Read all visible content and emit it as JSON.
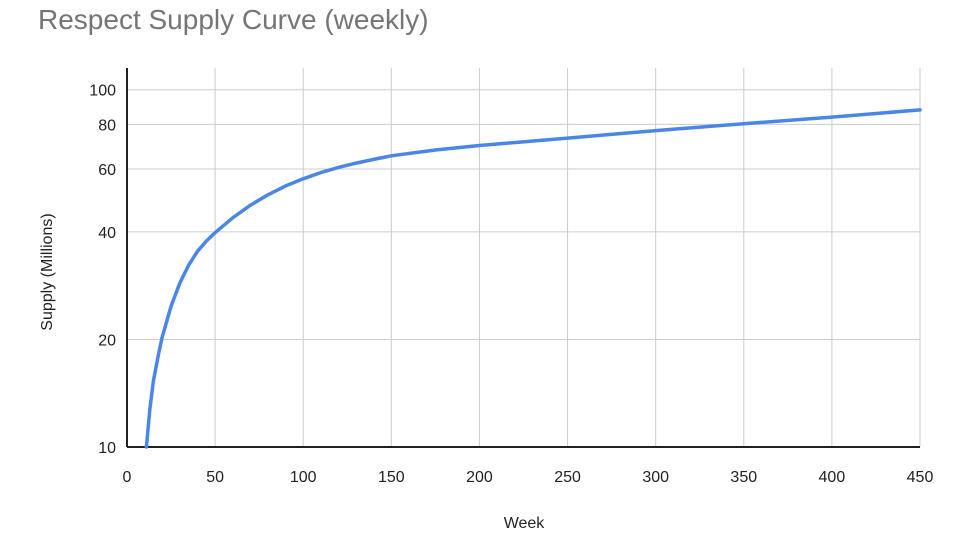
{
  "chart_data": {
    "type": "line",
    "title": "Respect Supply Curve (weekly)",
    "xlabel": "Week",
    "ylabel": "Supply (Millions)",
    "xlim": [
      0,
      450
    ],
    "ylim": [
      10,
      115
    ],
    "y_scale": "log",
    "x_ticks": [
      0,
      50,
      100,
      150,
      200,
      250,
      300,
      350,
      400,
      450
    ],
    "y_ticks": [
      10,
      20,
      40,
      60,
      80,
      100
    ],
    "grid": true,
    "legend": "none",
    "series": [
      {
        "color": "#4a86e8",
        "x": [
          11,
          13,
          15,
          18,
          20,
          25,
          30,
          35,
          40,
          45,
          50,
          60,
          70,
          80,
          90,
          100,
          110,
          120,
          130,
          140,
          150,
          175,
          200,
          250,
          300,
          350,
          400,
          450
        ],
        "y": [
          10,
          12.8,
          15.3,
          18.3,
          20.3,
          24.8,
          28.8,
          32.3,
          35.3,
          37.7,
          39.8,
          43.8,
          47.5,
          50.8,
          53.8,
          56.3,
          58.6,
          60.6,
          62.3,
          63.8,
          65.3,
          67.8,
          69.8,
          73.2,
          76.8,
          80.3,
          83.8,
          87.8
        ]
      }
    ]
  }
}
